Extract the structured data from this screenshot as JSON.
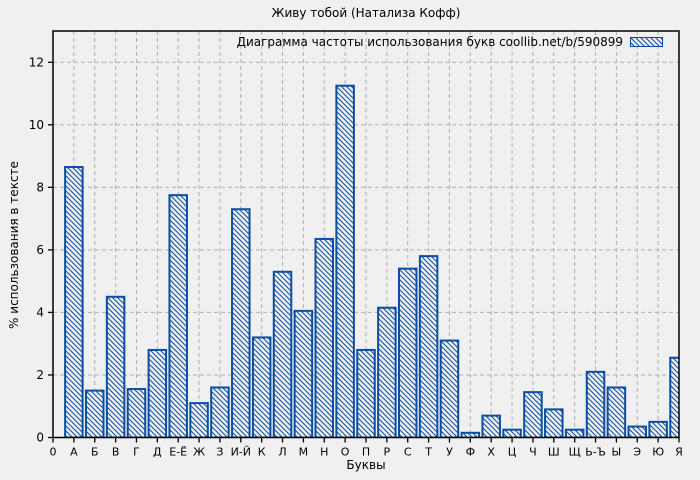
{
  "chart_data": {
    "type": "bar",
    "title": "Живу тобой (Натализа Кофф)",
    "legend": "Диаграмма частоты использования букв coollib.net/b/590899",
    "legend_position": "top-right",
    "xlabel": "Буквы",
    "ylabel": "% использования в тексте",
    "categories": [
      "0",
      "А",
      "Б",
      "В",
      "Г",
      "Д",
      "Е-Ё",
      "Ж",
      "З",
      "И-Й",
      "К",
      "Л",
      "М",
      "Н",
      "О",
      "П",
      "Р",
      "С",
      "Т",
      "У",
      "Ф",
      "Х",
      "Ц",
      "Ч",
      "Ш",
      "Щ",
      "Ь-Ъ",
      "Ы",
      "Э",
      "Ю",
      "Я"
    ],
    "values": [
      null,
      8.65,
      1.5,
      4.5,
      1.55,
      2.8,
      7.75,
      1.1,
      1.6,
      7.3,
      3.2,
      5.3,
      4.05,
      6.35,
      11.25,
      2.8,
      4.15,
      5.4,
      5.8,
      3.1,
      0.15,
      0.7,
      0.25,
      1.45,
      0.9,
      0.25,
      2.1,
      1.6,
      0.35,
      0.5,
      2.55
    ],
    "y_ticks": [
      0,
      2,
      4,
      6,
      8,
      10,
      12
    ],
    "ylim": [
      0,
      13
    ],
    "grid": true,
    "bar_style": "diagonal-hatch",
    "colors": {
      "bar_border": "#0b4da2",
      "bar_fill": "#f0f0f0",
      "background": "#f0f0f0",
      "grid": "#b0b0b0",
      "axis": "#000000"
    }
  }
}
